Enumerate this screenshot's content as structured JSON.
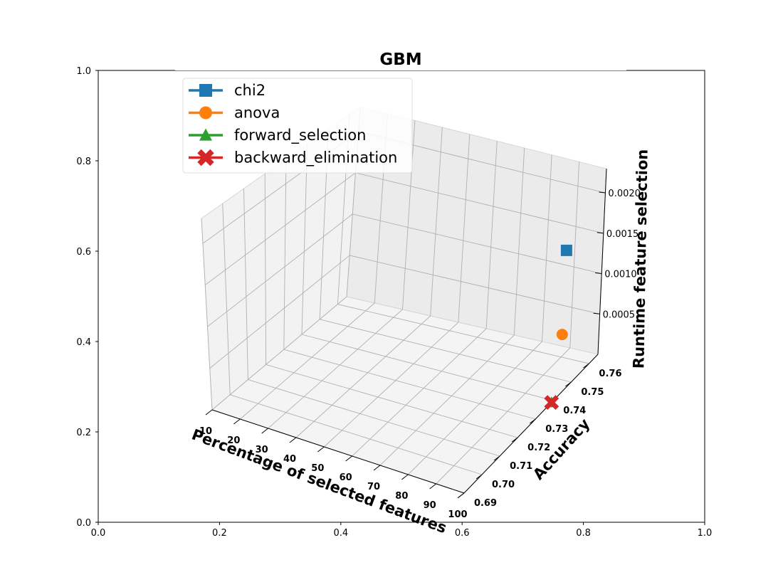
{
  "chart_data": {
    "type": "scatter",
    "projection": "3d",
    "title": "GBM",
    "xlabel": "Percentage of selected features",
    "ylabel": "Accuracy",
    "zlabel": "Runtime feature selection",
    "xticks": [
      "10",
      "20",
      "30",
      "40",
      "50",
      "60",
      "70",
      "80",
      "90",
      "100"
    ],
    "yticks": [
      "0.69",
      "0.70",
      "0.71",
      "0.72",
      "0.73",
      "0.74",
      "0.75",
      "0.76"
    ],
    "zticks": [
      "0.0005",
      "0.0010",
      "0.0015",
      "0.0020"
    ],
    "xlim": [
      10,
      100
    ],
    "ylim": [
      0.69,
      0.765
    ],
    "zlim": [
      0.0,
      0.0023
    ],
    "legend_position": "upper-left",
    "grid": true,
    "series": [
      {
        "name": "chi2",
        "marker": "square",
        "color": "#1f77b4",
        "points": [
          {
            "x": 100,
            "y": 0.745,
            "z": 0.00173
          }
        ]
      },
      {
        "name": "anova",
        "marker": "circle",
        "color": "#ff7f0e",
        "points": [
          {
            "x": 100,
            "y": 0.744,
            "z": 0.00072
          }
        ]
      },
      {
        "name": "forward_selection",
        "marker": "triangle",
        "color": "#2ca02c",
        "points": [
          {
            "x": 100,
            "y": 0.739,
            "z": 0.0
          }
        ]
      },
      {
        "name": "backward_elimination",
        "marker": "x",
        "color": "#d62728",
        "points": [
          {
            "x": 100,
            "y": 0.739,
            "z": 0.0
          }
        ]
      }
    ],
    "background_axes": {
      "xticks": [
        "0.0",
        "0.2",
        "0.4",
        "0.6",
        "0.8",
        "1.0"
      ],
      "yticks": [
        "0.0",
        "0.2",
        "0.4",
        "0.6",
        "0.8",
        "1.0"
      ]
    }
  }
}
